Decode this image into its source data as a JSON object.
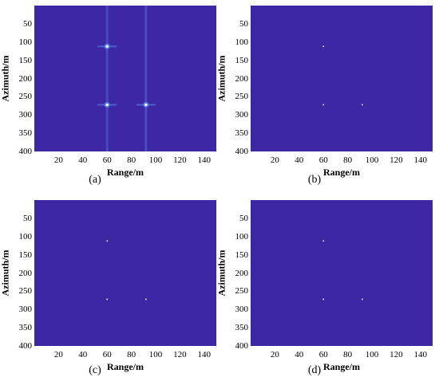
{
  "plot_color": "#3e27a3",
  "target_color": "#ffffff",
  "glow_color": "#5a8ef0",
  "chart_data": [
    {
      "type": "heatmap",
      "caption": "(a)",
      "xlabel": "Range/m",
      "ylabel": "Azimuth/m",
      "xlim": [
        0,
        150
      ],
      "ylim": [
        400,
        0
      ],
      "xticks": [
        "20",
        "40",
        "60",
        "80",
        "100",
        "120",
        "140"
      ],
      "yticks": [
        "50",
        "100",
        "150",
        "200",
        "250",
        "300",
        "350",
        "400"
      ],
      "targets": [
        {
          "x": 60,
          "y": 112
        },
        {
          "x": 60,
          "y": 272
        },
        {
          "x": 92,
          "y": 272
        }
      ],
      "sidelobes": true
    },
    {
      "type": "heatmap",
      "caption": "(b)",
      "xlabel": "Range/m",
      "ylabel": "Azimuth/m",
      "xlim": [
        0,
        150
      ],
      "ylim": [
        400,
        0
      ],
      "xticks": [
        "20",
        "40",
        "60",
        "80",
        "100",
        "120",
        "140"
      ],
      "yticks": [
        "50",
        "100",
        "150",
        "200",
        "250",
        "300",
        "350",
        "400"
      ],
      "targets": [
        {
          "x": 60,
          "y": 112
        },
        {
          "x": 60,
          "y": 272
        },
        {
          "x": 92,
          "y": 272
        }
      ],
      "sidelobes": false
    },
    {
      "type": "heatmap",
      "caption": "(c)",
      "xlabel": "Range/m",
      "ylabel": "Azimuth/m",
      "xlim": [
        0,
        150
      ],
      "ylim": [
        400,
        0
      ],
      "xticks": [
        "20",
        "40",
        "60",
        "80",
        "100",
        "120",
        "140"
      ],
      "yticks": [
        "50",
        "100",
        "150",
        "200",
        "250",
        "300",
        "350",
        "400"
      ],
      "targets": [
        {
          "x": 60,
          "y": 112
        },
        {
          "x": 60,
          "y": 272
        },
        {
          "x": 92,
          "y": 272
        }
      ],
      "sidelobes": false
    },
    {
      "type": "heatmap",
      "caption": "(d)",
      "xlabel": "Range/m",
      "ylabel": "Azimuth/m",
      "xlim": [
        0,
        150
      ],
      "ylim": [
        400,
        0
      ],
      "xticks": [
        "20",
        "40",
        "60",
        "80",
        "100",
        "120",
        "140"
      ],
      "yticks": [
        "50",
        "100",
        "150",
        "200",
        "250",
        "300",
        "350",
        "400"
      ],
      "targets": [
        {
          "x": 60,
          "y": 112
        },
        {
          "x": 60,
          "y": 272
        },
        {
          "x": 92,
          "y": 272
        }
      ],
      "sidelobes": false
    }
  ]
}
